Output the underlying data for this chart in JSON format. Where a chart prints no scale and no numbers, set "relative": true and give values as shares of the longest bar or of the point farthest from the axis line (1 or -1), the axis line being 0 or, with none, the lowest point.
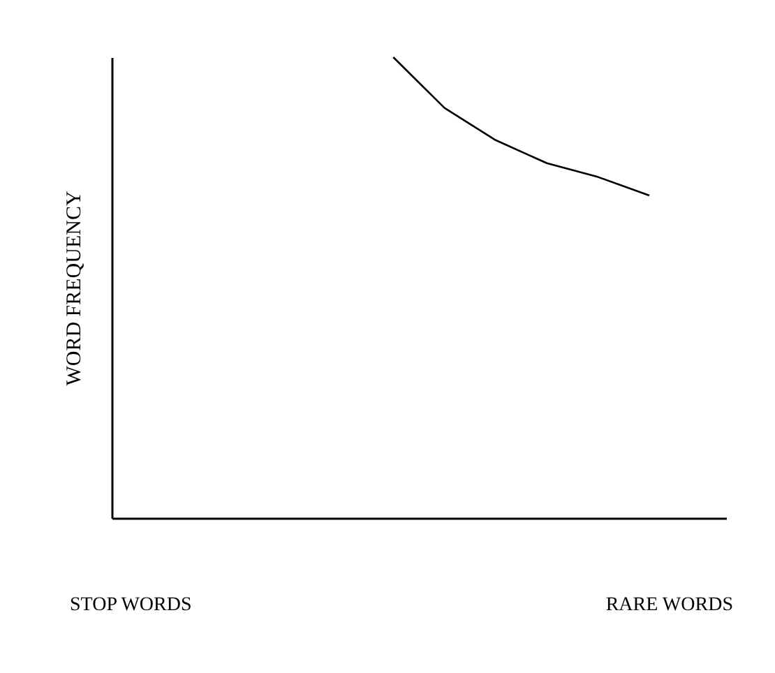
{
  "chart_data": {
    "type": "line",
    "relative": true,
    "ylabel": "WORD FREQUENCY",
    "categories": [
      null,
      null,
      null,
      null,
      null,
      null,
      null,
      null,
      null,
      null,
      null,
      null
    ],
    "series": [
      {
        "color": "#000000",
        "values": [
          null,
          null,
          null,
          null,
          null,
          1,
          0.89,
          0.82,
          0.77,
          0.74,
          0.7,
          null
        ]
      }
    ],
    "annotations": [
      "STOP WORDS",
      "RARE WORDS"
    ],
    "grid": false,
    "marker": "none",
    "line_style": "solid"
  }
}
